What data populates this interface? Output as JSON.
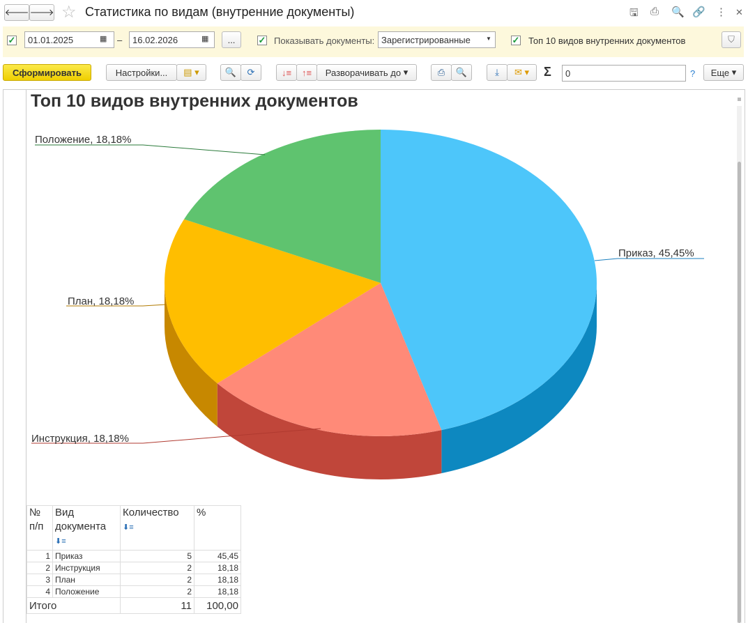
{
  "window": {
    "title": "Статистика по видам (внутренние документы)"
  },
  "filters": {
    "date_from": "01.01.2025",
    "dash": "–",
    "date_to": "16.02.2026",
    "ellipsis": "...",
    "show_docs_label": "Показывать документы:",
    "show_docs_value": "Зарегистрированные",
    "top10_label": "Топ 10 видов внутренних документов",
    "date_checked": true,
    "show_checked": true,
    "top10_checked": true
  },
  "toolbar": {
    "generate": "Сформировать",
    "settings": "Настройки...",
    "expand": "Разворачивать до",
    "sum_value": "0",
    "help": "?",
    "more": "Еще"
  },
  "report": {
    "title": "Топ 10 видов внутренних документов"
  },
  "chart_data": {
    "type": "pie",
    "title": "Топ 10 видов внутренних документов",
    "three_d": true,
    "slices": [
      {
        "name": "Приказ",
        "value": 45.45,
        "label": "Приказ, 45,45%",
        "color": "#4dc6fa",
        "side": "#0d88c0",
        "line": "#1a7fbf"
      },
      {
        "name": "Инструкция",
        "value": 18.18,
        "label": "Инструкция, 18,18%",
        "color": "#ff8a78",
        "side": "#c0463a",
        "line": "#b03a30"
      },
      {
        "name": "План",
        "value": 18.18,
        "label": "План, 18,18%",
        "color": "#ffbe00",
        "side": "#c78800",
        "line": "#b07a00"
      },
      {
        "name": "Положение",
        "value": 18.18,
        "label": "Положение, 18,18%",
        "color": "#5fc36f",
        "side": "#3a9a4a",
        "line": "#2a7a3a"
      }
    ]
  },
  "table": {
    "headers": [
      "№ п/п",
      "Вид документа",
      "Количество",
      "%"
    ],
    "rows": [
      [
        "1",
        "Приказ",
        "5",
        "45,45"
      ],
      [
        "2",
        "Инструкция",
        "2",
        "18,18"
      ],
      [
        "3",
        "План",
        "2",
        "18,18"
      ],
      [
        "4",
        "Положение",
        "2",
        "18,18"
      ]
    ],
    "total": {
      "label": "Итого",
      "count": "11",
      "percent": "100,00"
    }
  }
}
